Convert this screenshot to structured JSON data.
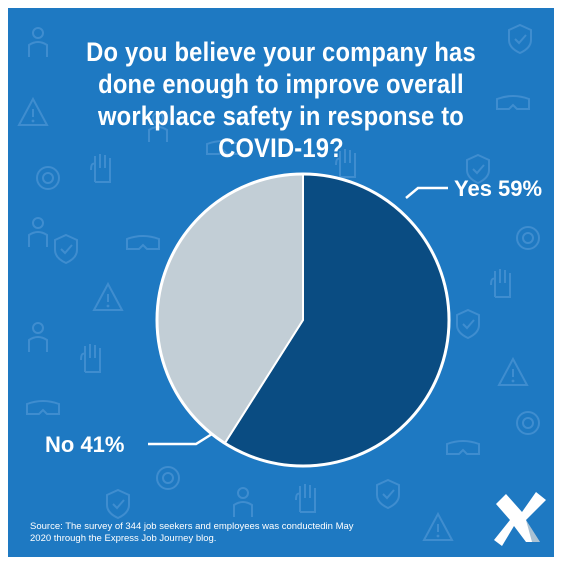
{
  "title": "Do you believe your company has done enough to improve overall workplace safety in response to COVID-19?",
  "source": "Source: The survey of 344 job seekers and employees was conductedin May 2020 through the Express Job Journey blog.",
  "colors": {
    "background": "#1e79c2",
    "yes": "#0a4c82",
    "no": "#c2ced6",
    "text": "#ffffff"
  },
  "chart_data": {
    "type": "pie",
    "title": "Do you believe your company has done enough to improve overall workplace safety in response to COVID-19?",
    "slices": [
      {
        "label": "Yes",
        "value": 59,
        "display": "Yes 59%",
        "color": "#0a4c82"
      },
      {
        "label": "No",
        "value": 41,
        "display": "No 41%",
        "color": "#c2ced6"
      }
    ],
    "unit": "%"
  },
  "logo": {
    "icon": "express-x-logo-icon"
  }
}
